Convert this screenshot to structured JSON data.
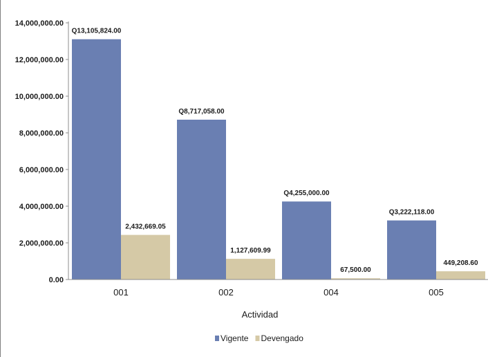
{
  "chart_data": {
    "type": "bar",
    "title": "",
    "xlabel": "Actividad",
    "ylabel": "",
    "categories": [
      "001",
      "002",
      "004",
      "005"
    ],
    "ylim": [
      0,
      14000000
    ],
    "y_ticks": [
      "0.00",
      "2,000,000.00",
      "4,000,000.00",
      "6,000,000.00",
      "8,000,000.00",
      "10,000,000.00",
      "12,000,000.00",
      "14,000,000.00"
    ],
    "grid": false,
    "legend_position": "bottom",
    "series": [
      {
        "name": "Vigente",
        "color": "#6a7fb2",
        "values": [
          13105824.0,
          8717058.0,
          4255000.0,
          3222118.0
        ],
        "labels": [
          "Q13,105,824.00",
          "Q8,717,058.00",
          "Q4,255,000.00",
          "Q3,222,118.00"
        ]
      },
      {
        "name": "Devengado",
        "color": "#d5c9a6",
        "values": [
          2432669.05,
          1127609.99,
          67500.0,
          449208.6
        ],
        "labels": [
          "2,432,669.05",
          "1,127,609.99",
          "67,500.00",
          "449,208.60"
        ]
      }
    ]
  }
}
